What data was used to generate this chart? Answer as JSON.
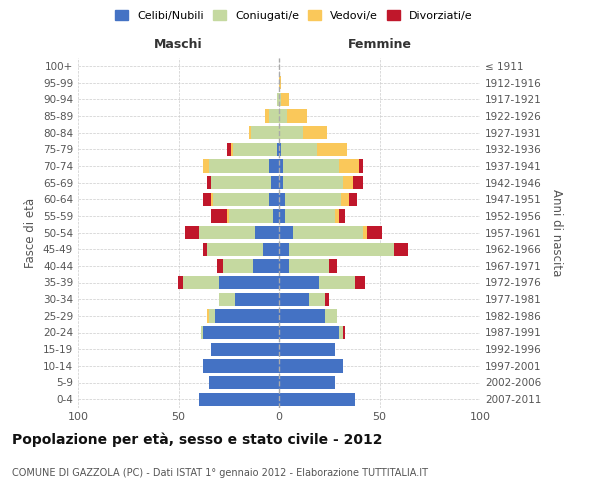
{
  "age_groups": [
    "0-4",
    "5-9",
    "10-14",
    "15-19",
    "20-24",
    "25-29",
    "30-34",
    "35-39",
    "40-44",
    "45-49",
    "50-54",
    "55-59",
    "60-64",
    "65-69",
    "70-74",
    "75-79",
    "80-84",
    "85-89",
    "90-94",
    "95-99",
    "100+"
  ],
  "birth_years": [
    "2007-2011",
    "2002-2006",
    "1997-2001",
    "1992-1996",
    "1987-1991",
    "1982-1986",
    "1977-1981",
    "1972-1976",
    "1967-1971",
    "1962-1966",
    "1957-1961",
    "1952-1956",
    "1947-1951",
    "1942-1946",
    "1937-1941",
    "1932-1936",
    "1927-1931",
    "1922-1926",
    "1917-1921",
    "1912-1916",
    "≤ 1911"
  ],
  "males": {
    "celibi": [
      40,
      35,
      38,
      34,
      38,
      32,
      22,
      30,
      13,
      8,
      12,
      3,
      5,
      4,
      5,
      1,
      0,
      0,
      0,
      0,
      0
    ],
    "coniugati": [
      0,
      0,
      0,
      0,
      1,
      3,
      8,
      18,
      15,
      28,
      28,
      22,
      28,
      30,
      30,
      22,
      14,
      5,
      1,
      0,
      0
    ],
    "vedovi": [
      0,
      0,
      0,
      0,
      0,
      1,
      0,
      0,
      0,
      0,
      0,
      1,
      1,
      0,
      3,
      1,
      1,
      2,
      0,
      0,
      0
    ],
    "divorziati": [
      0,
      0,
      0,
      0,
      0,
      0,
      0,
      2,
      3,
      2,
      7,
      8,
      4,
      2,
      0,
      2,
      0,
      0,
      0,
      0,
      0
    ]
  },
  "females": {
    "nubili": [
      38,
      28,
      32,
      28,
      30,
      23,
      15,
      20,
      5,
      5,
      7,
      3,
      3,
      2,
      2,
      1,
      0,
      0,
      0,
      0,
      0
    ],
    "coniugate": [
      0,
      0,
      0,
      0,
      2,
      6,
      8,
      18,
      20,
      52,
      35,
      25,
      28,
      30,
      28,
      18,
      12,
      4,
      1,
      0,
      0
    ],
    "vedove": [
      0,
      0,
      0,
      0,
      0,
      0,
      0,
      0,
      0,
      0,
      2,
      2,
      4,
      5,
      10,
      15,
      12,
      10,
      4,
      1,
      0
    ],
    "divorziate": [
      0,
      0,
      0,
      0,
      1,
      0,
      2,
      5,
      4,
      7,
      7,
      3,
      4,
      5,
      2,
      0,
      0,
      0,
      0,
      0,
      0
    ]
  },
  "colors": {
    "celibi": "#4472C4",
    "coniugati": "#C5D9A0",
    "vedovi": "#FAC85A",
    "divorziati": "#C0172B"
  },
  "xlim": 100,
  "title": "Popolazione per età, sesso e stato civile - 2012",
  "subtitle": "COMUNE DI GAZZOLA (PC) - Dati ISTAT 1° gennaio 2012 - Elaborazione TUTTITALIA.IT",
  "ylabel_left": "Fasce di età",
  "ylabel_right": "Anni di nascita",
  "xlabel_left": "Maschi",
  "xlabel_right": "Femmine",
  "legend_labels": [
    "Celibi/Nubili",
    "Coniugati/e",
    "Vedovi/e",
    "Divorziati/e"
  ],
  "bg_color": "#FFFFFF",
  "grid_color": "#CCCCCC"
}
